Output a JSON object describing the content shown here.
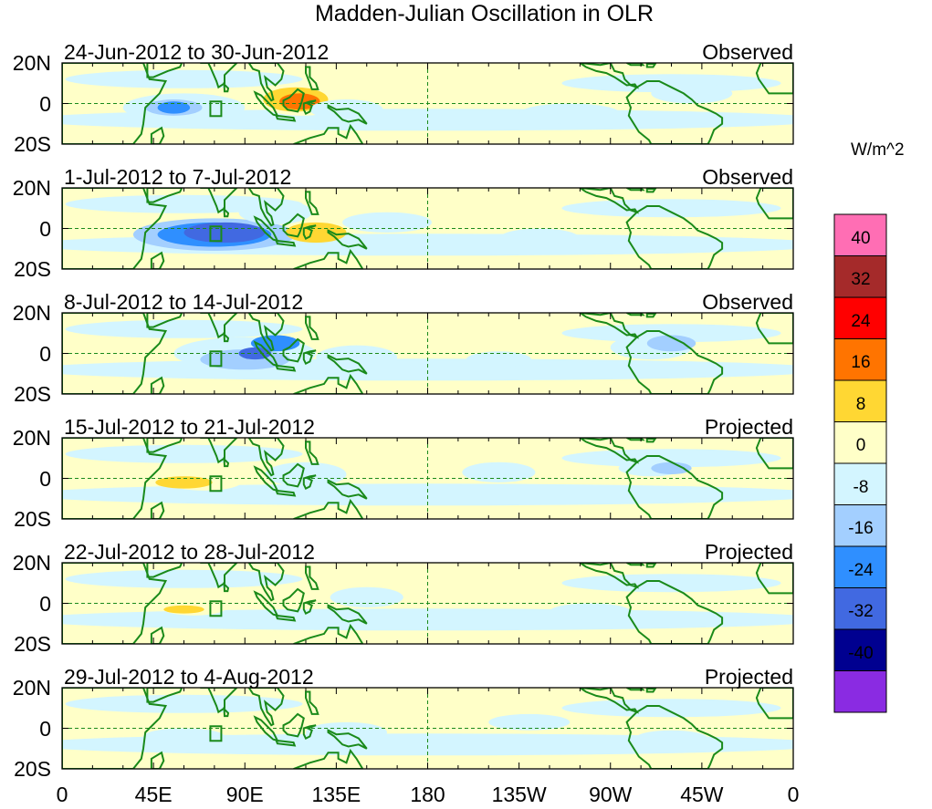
{
  "title": "Madden-Julian Oscillation in OLR",
  "panels": [
    {
      "date_range": "24-Jun-2012 to 30-Jun-2012",
      "status": "Observed"
    },
    {
      "date_range": "1-Jul-2012 to 7-Jul-2012",
      "status": "Observed"
    },
    {
      "date_range": "8-Jul-2012 to 14-Jul-2012",
      "status": "Observed"
    },
    {
      "date_range": "15-Jul-2012 to 21-Jul-2012",
      "status": "Projected"
    },
    {
      "date_range": "22-Jul-2012 to 28-Jul-2012",
      "status": "Projected"
    },
    {
      "date_range": "29-Jul-2012 to 4-Aug-2012",
      "status": "Projected"
    }
  ],
  "lat_labels": [
    "20N",
    "0",
    "20S"
  ],
  "lon_labels": [
    "0",
    "45E",
    "90E",
    "135E",
    "180",
    "135W",
    "90W",
    "45W",
    "0"
  ],
  "colorbar": {
    "units": "W/m^2",
    "labels": [
      "40",
      "32",
      "24",
      "16",
      "8",
      "0",
      "-8",
      "-16",
      "-24",
      "-32",
      "-40"
    ],
    "colors": [
      "#ff6eb4",
      "#a52a2a",
      "#ff0000",
      "#ff7400",
      "#ffd733",
      "#ffffc8",
      "#d3f5ff",
      "#a3cfff",
      "#2f8fff",
      "#4169e1",
      "#000090",
      "#8a2be2"
    ]
  },
  "colors": {
    "land": "#1a8a1a",
    "equator": "#1a8a1a"
  }
}
